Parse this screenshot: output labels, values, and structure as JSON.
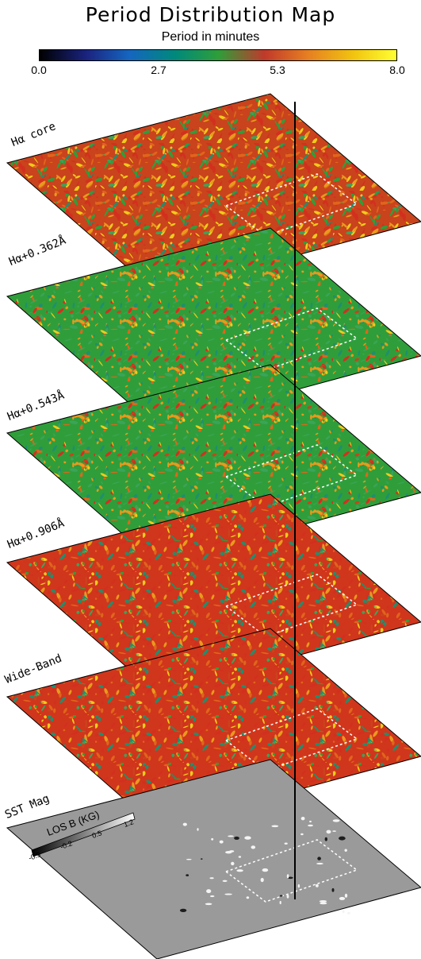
{
  "header": {
    "title": "Period Distribution Map",
    "colorbar_label": "Period in minutes",
    "colorbar_ticks": [
      "0.0",
      "2.7",
      "5.3",
      "8.0"
    ]
  },
  "layers": [
    {
      "label": "Hα core",
      "palette": "period"
    },
    {
      "label": "Hα+0.362Å",
      "palette": "period"
    },
    {
      "label": "Hα+0.543Å",
      "palette": "period"
    },
    {
      "label": "Hα+0.906Å",
      "palette": "period"
    },
    {
      "label": "Wide-Band",
      "palette": "period"
    },
    {
      "label": "SST Mag",
      "palette": "magnetogram"
    }
  ],
  "magnetogram_key": {
    "label": "LOS B (KG)",
    "ticks": [
      "-0.9",
      "-0.2",
      "0.5",
      "1.2"
    ]
  },
  "colors": {
    "colorbar_stops": [
      "#000000",
      "#1a237e",
      "#1565c0",
      "#00897b",
      "#2e9e3a",
      "#c0392b",
      "#e67e22",
      "#f1c40f",
      "#ffff33"
    ],
    "period_palette": [
      "#d32f1f",
      "#e0651b",
      "#e89a1d",
      "#f0cb1a",
      "#2f9e3a",
      "#3aa45a",
      "#1f8f6e",
      "#c9431c"
    ],
    "mag_background": "#9a9a9a"
  }
}
